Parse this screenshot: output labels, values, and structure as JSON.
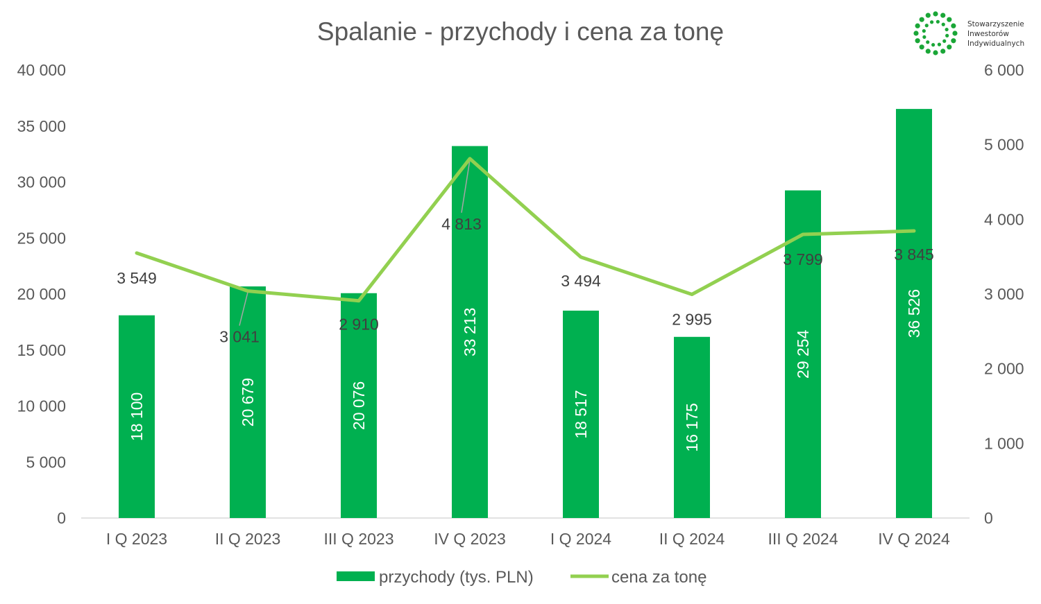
{
  "colors": {
    "bar": "#00b050",
    "line": "#92d050",
    "text": "#404040",
    "axis": "#d9d9d9",
    "leader": "#a6a6a6",
    "logo": "#1aa637"
  },
  "logo": {
    "line1": "Stowarzyszenie",
    "line2": "Inwestorów",
    "line3": "Indywidualnych"
  },
  "chart_data": {
    "type": "bar",
    "title": "Spalanie - przychody i cena za tonę",
    "categories": [
      "I Q 2023",
      "II Q 2023",
      "III Q 2023",
      "IV Q 2023",
      "I Q 2024",
      "II Q 2024",
      "III Q 2024",
      "IV Q 2024"
    ],
    "series": [
      {
        "name": "przychody (tys. PLN)",
        "type": "bar",
        "axis": "left",
        "values": [
          18100,
          20679,
          20076,
          33213,
          18517,
          16175,
          29254,
          36526
        ],
        "labels": [
          "18 100",
          "20 679",
          "20 076",
          "33 213",
          "18 517",
          "16 175",
          "29 254",
          "36 526"
        ]
      },
      {
        "name": "cena za tonę",
        "type": "line",
        "axis": "right",
        "values": [
          3549,
          3041,
          2910,
          4813,
          3494,
          2995,
          3799,
          3845
        ],
        "labels": [
          "3 549",
          "3 041",
          "2 910",
          "4 813",
          "3 494",
          "2 995",
          "3 799",
          "3 845"
        ]
      }
    ],
    "y_left": {
      "min": 0,
      "max": 40000,
      "ticks": [
        "0",
        "5 000",
        "10 000",
        "15 000",
        "20 000",
        "25 000",
        "30 000",
        "35 000",
        "40 000"
      ]
    },
    "y_right": {
      "min": 0,
      "max": 6000,
      "ticks": [
        "0",
        "1 000",
        "2 000",
        "3 000",
        "4 000",
        "5 000",
        "6 000"
      ]
    },
    "grid": false,
    "legend": "bottom"
  }
}
